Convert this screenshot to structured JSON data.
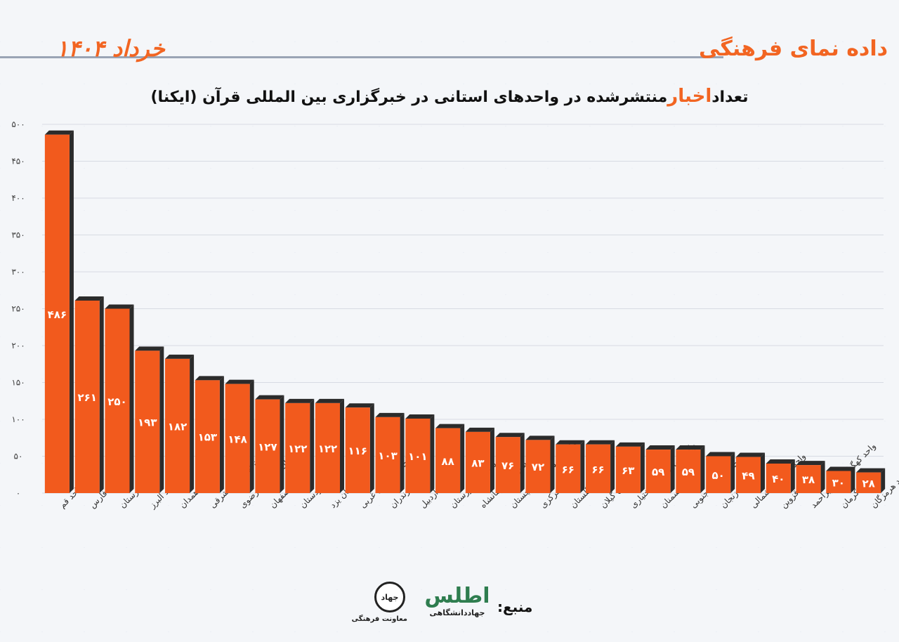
{
  "header": {
    "brand": "داده نمای فرهنگی",
    "date": "خرداد ۱۴۰۴"
  },
  "title": {
    "part1": "تعداد",
    "highlight": "اخبار",
    "part2": "منتشرشده در واحدهای استانی در خبرگزاری بین المللی قرآن (ایکنا)"
  },
  "footer": {
    "source_label": "منبع:",
    "jahad_seal": "جهاد",
    "jahad_caption": "معاونت فرهنگی",
    "atlas_mark": "اطلس",
    "atlas_caption": "جهاددانشگاهی"
  },
  "colors": {
    "bar": "#f25a1d",
    "bar_shadow": "#2b2b2b",
    "accent": "#f26522"
  },
  "chart_data": {
    "type": "bar",
    "categories": [
      "واحد قم",
      "واحد فارس",
      "واحد لرستان",
      "واحد البرز",
      "واحد همدان",
      "سازمان آذربایجان شرقی",
      "سازمان خراسان رضوی",
      "واحد اصفهان",
      "واحد کردستان",
      "سازمان یزد",
      "واحد آذربایجان غربی",
      "واحد مازندران",
      "واحد اردبیل",
      "سازمان خوزستان",
      "سازمان کرمانشاه",
      "واحد سیستان و بلوچستان",
      "واحد مرکزی",
      "واحد گلستان",
      "سازمان گیلان",
      "واحد چهارمحال و بختیاری",
      "واحد سمنان",
      "واحد خراسان جنوبی",
      "واحد زنجان",
      "واحد خراسان شمالی",
      "واحد قزوین",
      "واحد کهگیلویه و بویراحمد",
      "واحد کرمان",
      "واحد هرمزگان"
    ],
    "values": [
      486,
      261,
      250,
      193,
      182,
      153,
      148,
      127,
      122,
      122,
      116,
      103,
      101,
      88,
      83,
      76,
      72,
      66,
      66,
      63,
      59,
      59,
      50,
      49,
      40,
      38,
      30,
      28
    ],
    "value_labels": [
      "۴۸۶",
      "۲۶۱",
      "۲۵۰",
      "۱۹۳",
      "۱۸۲",
      "۱۵۳",
      "۱۴۸",
      "۱۲۷",
      "۱۲۲",
      "۱۲۲",
      "۱۱۶",
      "۱۰۳",
      "۱۰۱",
      "۸۸",
      "۸۳",
      "۷۶",
      "۷۲",
      "۶۶",
      "۶۶",
      "۶۳",
      "۵۹",
      "۵۹",
      "۵۰",
      "۴۹",
      "۴۰",
      "۳۸",
      "۳۰",
      "۲۸"
    ],
    "y_ticks": [
      0,
      50,
      100,
      150,
      200,
      250,
      300,
      350,
      400,
      450,
      500
    ],
    "y_tick_labels": [
      "۰",
      "۵۰",
      "۱۰۰",
      "۱۵۰",
      "۲۰۰",
      "۲۵۰",
      "۳۰۰",
      "۳۵۰",
      "۴۰۰",
      "۴۵۰",
      "۵۰۰"
    ],
    "ylim": [
      0,
      500
    ],
    "grid": true,
    "legend": "none"
  }
}
